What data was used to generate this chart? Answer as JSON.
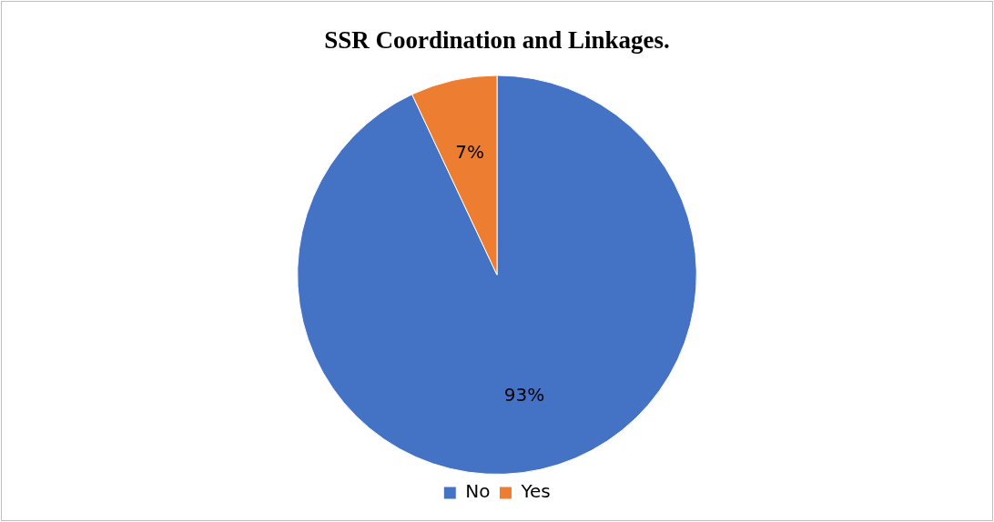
{
  "chart_data": {
    "type": "pie",
    "title": "SSR Coordination and Linkages.",
    "categories": [
      "No",
      "Yes"
    ],
    "values": [
      93,
      7
    ],
    "colors": [
      "#4472c4",
      "#ed7d31"
    ],
    "value_labels": [
      "93%",
      "7%"
    ],
    "legend": "bottom"
  }
}
